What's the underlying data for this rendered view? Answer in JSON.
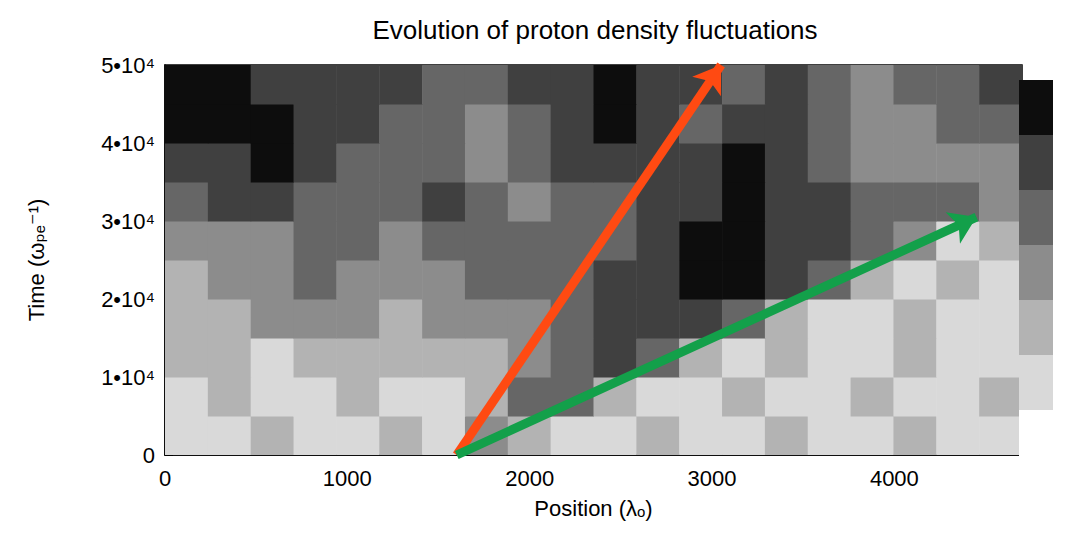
{
  "chart_data": {
    "type": "heatmap",
    "title": "Evolution of proton density fluctuations",
    "x_label": "Position (λₒ)",
    "y_label": "Time (ωₚₑ⁻¹)",
    "xlim": [
      0,
      4700
    ],
    "xticks": [
      0,
      1000,
      2000,
      3000,
      4000
    ],
    "ylim": [
      0,
      50000
    ],
    "yticks": [
      0,
      {
        "value": 10000,
        "label": "1•10⁴"
      },
      {
        "value": 20000,
        "label": "2•10⁴"
      },
      {
        "value": 30000,
        "label": "3•10⁴"
      },
      {
        "value": 40000,
        "label": "4•10⁴"
      },
      {
        "value": 50000,
        "label": "5•10⁴"
      }
    ],
    "cells": {
      "x_edges": [
        0,
        235,
        470,
        705,
        940,
        1175,
        1410,
        1645,
        1880,
        2115,
        2350,
        2585,
        2820,
        3055,
        3290,
        3525,
        3760,
        3995,
        4230,
        4465,
        4700
      ],
      "y_edges": [
        0,
        5000,
        10000,
        15000,
        20000,
        25000,
        30000,
        35000,
        40000,
        45000,
        50000
      ],
      "values": [
        [
          1,
          1,
          2,
          1,
          1,
          2,
          1,
          3,
          2,
          1,
          1,
          2,
          1,
          1,
          2,
          1,
          1,
          2,
          1,
          1
        ],
        [
          1,
          2,
          1,
          1,
          2,
          1,
          1,
          2,
          4,
          4,
          2,
          1,
          1,
          2,
          1,
          1,
          2,
          1,
          1,
          2
        ],
        [
          2,
          2,
          1,
          2,
          2,
          2,
          2,
          2,
          3,
          4,
          5,
          4,
          2,
          1,
          2,
          1,
          1,
          2,
          1,
          1
        ],
        [
          2,
          2,
          3,
          3,
          3,
          2,
          3,
          3,
          3,
          4,
          5,
          5,
          5,
          4,
          2,
          1,
          1,
          2,
          1,
          1
        ],
        [
          2,
          3,
          3,
          4,
          3,
          3,
          3,
          4,
          4,
          4,
          5,
          5,
          6,
          6,
          5,
          4,
          2,
          1,
          2,
          1
        ],
        [
          3,
          3,
          3,
          4,
          4,
          3,
          4,
          4,
          4,
          4,
          4,
          5,
          6,
          6,
          5,
          5,
          4,
          3,
          1,
          2
        ],
        [
          4,
          5,
          5,
          4,
          4,
          4,
          5,
          4,
          3,
          4,
          4,
          5,
          5,
          6,
          5,
          5,
          4,
          4,
          4,
          3
        ],
        [
          5,
          5,
          6,
          5,
          4,
          4,
          4,
          3,
          4,
          5,
          5,
          5,
          5,
          6,
          5,
          4,
          3,
          3,
          3,
          3
        ],
        [
          6,
          6,
          6,
          5,
          5,
          4,
          4,
          3,
          4,
          5,
          6,
          5,
          4,
          5,
          5,
          4,
          3,
          3,
          4,
          4
        ],
        [
          6,
          6,
          5,
          5,
          5,
          5,
          4,
          4,
          5,
          5,
          6,
          5,
          5,
          4,
          5,
          4,
          3,
          4,
          4,
          5
        ]
      ]
    },
    "colorbar": {
      "range": [
        0,
        7
      ],
      "colors": [
        "#ffffff",
        "#d9d9d9",
        "#b3b3b3",
        "#8c8c8c",
        "#666666",
        "#404040",
        "#0d0d0d"
      ]
    },
    "arrows": [
      {
        "from": [
          1600,
          0
        ],
        "to": [
          3050,
          50000
        ],
        "color": "#ff4a12"
      },
      {
        "from": [
          1600,
          0
        ],
        "to": [
          4450,
          30500
        ],
        "color": "#13a04a"
      }
    ]
  }
}
